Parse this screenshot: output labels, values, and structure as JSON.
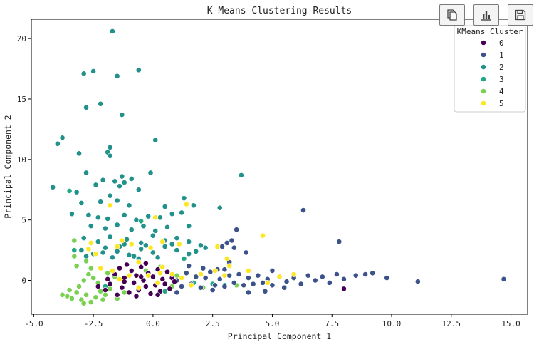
{
  "chart_data": {
    "type": "scatter",
    "title": "K-Means Clustering Results",
    "xlabel": "Principal Component 1",
    "ylabel": "Principal Component 2",
    "xlim": [
      -5.1,
      15.7
    ],
    "ylim": [
      -2.8,
      21.6
    ],
    "xticks": [
      -5.0,
      -2.5,
      0.0,
      2.5,
      5.0,
      7.5,
      10.0,
      12.5,
      15.0
    ],
    "xtick_labels": [
      "-5.0",
      "-2.5",
      "0.0",
      "2.5",
      "5.0",
      "7.5",
      "10.0",
      "12.5",
      "15.0"
    ],
    "yticks": [
      0,
      5,
      10,
      15,
      20
    ],
    "ytick_labels": [
      "0",
      "5",
      "10",
      "15",
      "20"
    ],
    "grid": false,
    "legend": {
      "title": "KMeans_Cluster",
      "position": "top-right",
      "entries": [
        "0",
        "1",
        "2",
        "3",
        "4",
        "5"
      ]
    },
    "series": [
      {
        "name": "0",
        "color": "#440154",
        "points": [
          [
            -2.0,
            -0.8
          ],
          [
            -1.8,
            -0.3
          ],
          [
            -1.6,
            0.5
          ],
          [
            -1.4,
            1.0
          ],
          [
            -1.3,
            -0.6
          ],
          [
            -1.2,
            0.2
          ],
          [
            -1.0,
            -1.0
          ],
          [
            -0.9,
            0.8
          ],
          [
            -0.8,
            -0.2
          ],
          [
            -0.7,
            0.4
          ],
          [
            -0.6,
            -0.8
          ],
          [
            -0.5,
            1.1
          ],
          [
            -0.4,
            0.0
          ],
          [
            -0.3,
            -0.5
          ],
          [
            -0.2,
            0.6
          ],
          [
            -0.1,
            -1.1
          ],
          [
            0.0,
            0.3
          ],
          [
            0.1,
            -0.4
          ],
          [
            0.2,
            0.9
          ],
          [
            0.3,
            -0.9
          ],
          [
            0.4,
            0.1
          ],
          [
            0.5,
            -0.3
          ],
          [
            0.6,
            0.7
          ],
          [
            0.7,
            -0.7
          ],
          [
            0.8,
            0.2
          ],
          [
            -1.5,
            -1.2
          ],
          [
            -1.1,
            1.3
          ],
          [
            -0.3,
            1.4
          ],
          [
            0.2,
            -1.2
          ],
          [
            -1.9,
            0.1
          ],
          [
            -2.3,
            -0.5
          ],
          [
            -0.7,
            -1.3
          ],
          [
            0.9,
            -0.1
          ],
          [
            -1.2,
            -0.1
          ],
          [
            -0.5,
            0.3
          ],
          [
            8.0,
            -0.7
          ]
        ]
      },
      {
        "name": "1",
        "color": "#3b528b",
        "points": [
          [
            1.0,
            0.0
          ],
          [
            1.2,
            -0.5
          ],
          [
            1.4,
            0.6
          ],
          [
            1.6,
            -0.3
          ],
          [
            1.8,
            0.3
          ],
          [
            2.0,
            -0.6
          ],
          [
            2.2,
            0.2
          ],
          [
            2.4,
            0.7
          ],
          [
            2.6,
            -0.4
          ],
          [
            2.8,
            0.1
          ],
          [
            3.0,
            -0.5
          ],
          [
            3.2,
            0.4
          ],
          [
            3.4,
            -0.2
          ],
          [
            3.6,
            0.5
          ],
          [
            3.8,
            -0.4
          ],
          [
            4.0,
            0.2
          ],
          [
            4.2,
            -0.3
          ],
          [
            4.4,
            0.4
          ],
          [
            4.6,
            -0.2
          ],
          [
            4.8,
            0.1
          ],
          [
            5.0,
            -0.4
          ],
          [
            5.3,
            0.3
          ],
          [
            5.6,
            -0.1
          ],
          [
            5.9,
            0.2
          ],
          [
            6.2,
            -0.3
          ],
          [
            6.5,
            0.4
          ],
          [
            6.8,
            0.0
          ],
          [
            7.1,
            0.3
          ],
          [
            7.4,
            -0.2
          ],
          [
            7.7,
            0.5
          ],
          [
            8.0,
            0.1
          ],
          [
            8.5,
            0.4
          ],
          [
            8.9,
            0.5
          ],
          [
            9.2,
            0.6
          ],
          [
            9.8,
            0.2
          ],
          [
            11.1,
            -0.1
          ],
          [
            14.7,
            0.1
          ],
          [
            7.8,
            3.2
          ],
          [
            6.3,
            5.8
          ],
          [
            3.5,
            4.2
          ],
          [
            3.3,
            3.3
          ],
          [
            3.4,
            2.7
          ],
          [
            3.9,
            2.3
          ],
          [
            3.2,
            1.5
          ],
          [
            1.5,
            1.2
          ],
          [
            2.1,
            1.0
          ],
          [
            2.7,
            0.9
          ],
          [
            1.0,
            -1.0
          ],
          [
            2.5,
            -0.8
          ],
          [
            4.7,
            -0.9
          ],
          [
            5.0,
            0.8
          ],
          [
            3.0,
            0.9
          ],
          [
            4.0,
            -1.0
          ],
          [
            5.5,
            -0.6
          ],
          [
            3.1,
            3.1
          ],
          [
            2.9,
            2.8
          ]
        ]
      },
      {
        "name": "2",
        "color": "#21918c",
        "points": [
          [
            -1.7,
            20.6
          ],
          [
            -0.6,
            17.4
          ],
          [
            -2.5,
            17.3
          ],
          [
            -2.9,
            17.1
          ],
          [
            -1.5,
            16.9
          ],
          [
            -2.2,
            14.6
          ],
          [
            -2.8,
            14.3
          ],
          [
            -1.3,
            13.7
          ],
          [
            0.1,
            11.6
          ],
          [
            -3.8,
            11.8
          ],
          [
            -4.0,
            11.3
          ],
          [
            -1.8,
            11.0
          ],
          [
            -1.9,
            10.6
          ],
          [
            -3.1,
            10.5
          ],
          [
            -1.8,
            10.3
          ],
          [
            -2.8,
            8.9
          ],
          [
            -1.3,
            8.6
          ],
          [
            -0.1,
            8.9
          ],
          [
            -0.9,
            8.4
          ],
          [
            -2.1,
            8.3
          ],
          [
            -1.6,
            8.2
          ],
          [
            -1.4,
            7.8
          ],
          [
            -2.4,
            7.9
          ],
          [
            -1.2,
            8.1
          ],
          [
            -4.2,
            7.7
          ],
          [
            -3.2,
            7.3
          ],
          [
            -0.6,
            7.5
          ],
          [
            -1.8,
            7.0
          ],
          [
            -2.2,
            6.5
          ],
          [
            -1.0,
            6.2
          ],
          [
            -3.0,
            6.4
          ],
          [
            -1.5,
            6.6
          ],
          [
            0.5,
            6.1
          ],
          [
            1.3,
            6.8
          ],
          [
            1.7,
            6.2
          ],
          [
            2.8,
            6.0
          ],
          [
            3.7,
            8.7
          ],
          [
            -3.4,
            5.5
          ],
          [
            -2.7,
            5.4
          ],
          [
            -2.3,
            5.2
          ],
          [
            -1.9,
            5.1
          ],
          [
            -1.2,
            5.4
          ],
          [
            -0.7,
            5.0
          ],
          [
            -0.2,
            5.3
          ],
          [
            0.3,
            5.2
          ],
          [
            0.8,
            5.5
          ],
          [
            1.2,
            5.6
          ],
          [
            -2.6,
            4.5
          ],
          [
            -2.0,
            4.3
          ],
          [
            -1.5,
            4.6
          ],
          [
            -0.9,
            4.2
          ],
          [
            -0.4,
            4.5
          ],
          [
            0.1,
            4.1
          ],
          [
            0.6,
            4.4
          ],
          [
            1.5,
            4.5
          ],
          [
            -2.9,
            3.5
          ],
          [
            -2.3,
            3.2
          ],
          [
            -1.8,
            3.6
          ],
          [
            -1.1,
            3.4
          ],
          [
            -0.5,
            3.1
          ],
          [
            0.0,
            3.7
          ],
          [
            0.5,
            3.3
          ],
          [
            1.0,
            3.5
          ],
          [
            1.5,
            3.2
          ],
          [
            2.0,
            2.9
          ],
          [
            -3.0,
            2.5
          ],
          [
            -2.5,
            2.2
          ],
          [
            -2.0,
            2.7
          ],
          [
            -1.5,
            2.4
          ],
          [
            -1.0,
            2.1
          ],
          [
            -0.5,
            2.6
          ],
          [
            0.0,
            2.3
          ],
          [
            0.5,
            2.8
          ],
          [
            1.0,
            2.5
          ],
          [
            1.5,
            2.2
          ],
          [
            2.2,
            2.7
          ],
          [
            -2.8,
            2.0
          ],
          [
            -1.7,
            1.9
          ],
          [
            -0.8,
            2.0
          ],
          [
            0.2,
            1.9
          ],
          [
            -1.2,
            3.0
          ],
          [
            -0.3,
            2.9
          ],
          [
            0.8,
            3.0
          ],
          [
            -2.1,
            2.3
          ],
          [
            1.8,
            2.4
          ],
          [
            -1.4,
            2.8
          ],
          [
            -0.6,
            1.8
          ]
        ]
      },
      {
        "name": "3",
        "color": "#22a884",
        "points": [
          [
            -3.5,
            7.4
          ],
          [
            -0.5,
            4.9
          ],
          [
            -3.3,
            2.5
          ],
          [
            1.3,
            1.8
          ],
          [
            1.7,
            -0.2
          ],
          [
            0.5,
            -0.9
          ],
          [
            -2.0,
            -0.5
          ],
          [
            2.5,
            -0.3
          ],
          [
            3.0,
            -0.4
          ]
        ]
      },
      {
        "name": "4",
        "color": "#7ad151",
        "points": [
          [
            -3.6,
            -1.3
          ],
          [
            -3.4,
            -1.5
          ],
          [
            -3.2,
            -1.0
          ],
          [
            -3.0,
            -1.6
          ],
          [
            -2.8,
            -1.2
          ],
          [
            -2.6,
            -1.8
          ],
          [
            -2.4,
            -1.4
          ],
          [
            -2.2,
            -0.9
          ],
          [
            -3.1,
            -0.5
          ],
          [
            -2.9,
            0.0
          ],
          [
            -2.7,
            0.5
          ],
          [
            -3.2,
            1.2
          ],
          [
            -3.3,
            2.0
          ],
          [
            -3.3,
            3.3
          ],
          [
            -2.5,
            0.2
          ],
          [
            -2.0,
            -1.2
          ],
          [
            -1.8,
            -0.7
          ],
          [
            -2.3,
            -0.2
          ],
          [
            -2.6,
            1.0
          ],
          [
            -3.5,
            -0.8
          ],
          [
            -1.5,
            -1.5
          ],
          [
            -3.8,
            -1.2
          ],
          [
            -2.9,
            -1.9
          ],
          [
            -2.1,
            -1.6
          ],
          [
            -1.9,
            0.6
          ],
          [
            -0.3,
            0.8
          ],
          [
            1.0,
            0.4
          ],
          [
            0.8,
            -0.5
          ],
          [
            -1.2,
            -1.0
          ],
          [
            2.1,
            -0.6
          ],
          [
            3.5,
            -0.4
          ],
          [
            -2.4,
            2.2
          ],
          [
            -2.8,
            1.6
          ],
          [
            -1.6,
            0.3
          ],
          [
            0.3,
            1.1
          ]
        ]
      },
      {
        "name": "5",
        "color": "#fde725",
        "points": [
          [
            -1.8,
            6.2
          ],
          [
            1.4,
            6.3
          ],
          [
            4.6,
            3.7
          ],
          [
            0.1,
            5.2
          ],
          [
            -2.6,
            3.1
          ],
          [
            -2.7,
            2.6
          ],
          [
            -1.5,
            2.8
          ],
          [
            -1.3,
            3.3
          ],
          [
            -0.9,
            3.0
          ],
          [
            -0.1,
            2.7
          ],
          [
            0.4,
            3.2
          ],
          [
            1.1,
            3.0
          ],
          [
            2.7,
            2.8
          ],
          [
            3.1,
            1.8
          ],
          [
            3.2,
            1.2
          ],
          [
            -2.2,
            1.0
          ],
          [
            -1.7,
            0.8
          ],
          [
            -1.4,
            0.1
          ],
          [
            -0.6,
            1.5
          ],
          [
            -0.2,
            0.4
          ],
          [
            0.3,
            0.6
          ],
          [
            0.8,
            0.5
          ],
          [
            1.2,
            0.2
          ],
          [
            1.6,
            -0.4
          ],
          [
            2.0,
            0.5
          ],
          [
            2.6,
            0.8
          ],
          [
            3.0,
            0.4
          ],
          [
            4.0,
            0.8
          ],
          [
            4.8,
            -0.2
          ],
          [
            5.3,
            0.3
          ],
          [
            5.9,
            0.5
          ],
          [
            -0.6,
            -0.6
          ],
          [
            0.2,
            -0.2
          ],
          [
            -1.0,
            0.4
          ],
          [
            0.4,
            1.1
          ],
          [
            -2.4,
            2.2
          ]
        ]
      }
    ]
  }
}
